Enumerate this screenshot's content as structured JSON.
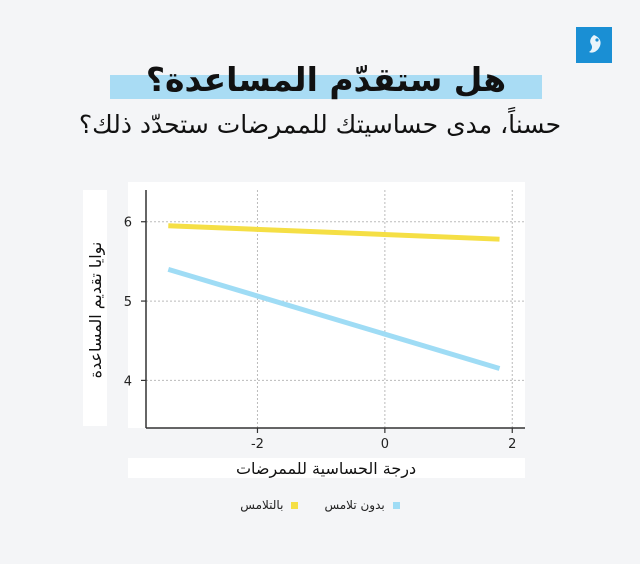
{
  "title": "هل ستقدّم المساعدة؟",
  "subtitle": "حسناً، مدى حساسيتك للممرضات ستحدّد ذلك؟",
  "colors": {
    "touch": "#f5df45",
    "no_touch": "#9fdcf5",
    "logo": "#1a8fd4",
    "title_bar": "#a9dcf4"
  },
  "logo_icon": "al-jazeera-logo",
  "chart_data": {
    "type": "line",
    "xlabel": "درجة الحساسية للممرضات",
    "ylabel": "نوايا تقديم المساعدة",
    "xlim": [
      -3.75,
      2.2
    ],
    "ylim": [
      3.4,
      6.4
    ],
    "xticks": [
      -2,
      0,
      2
    ],
    "xtick_labels": [
      "-2",
      "0",
      "2"
    ],
    "yticks": [
      4,
      5,
      6
    ],
    "ytick_labels": [
      "4",
      "5",
      "6"
    ],
    "grid": true,
    "legend_position": "bottom",
    "series": [
      {
        "name": "بالتلامس",
        "color": "#f5df45",
        "x": [
          -3.4,
          1.8
        ],
        "y": [
          5.95,
          5.78
        ]
      },
      {
        "name": "بدون تلامس",
        "color": "#9fdcf5",
        "x": [
          -3.4,
          1.8
        ],
        "y": [
          5.4,
          4.15
        ]
      }
    ]
  }
}
